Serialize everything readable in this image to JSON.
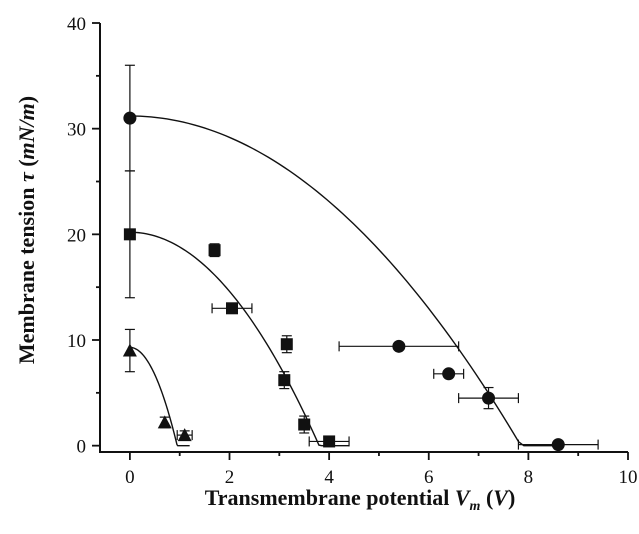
{
  "chart_data": {
    "type": "scatter",
    "title": "",
    "xlabel": "Transmembrane potential V_m (V)",
    "ylabel": "Membrane tension τ (mN/m)",
    "xlim": [
      -0.6,
      10
    ],
    "ylim": [
      -0.6,
      40
    ],
    "xticks": [
      "0",
      "2",
      "4",
      "6",
      "8",
      "10"
    ],
    "yticks": [
      "0",
      "10",
      "20",
      "30",
      "40"
    ],
    "grid": false,
    "legend": "none",
    "series": [
      {
        "marker": "triangle",
        "points": [
          {
            "x": 0.0,
            "y": 9.0,
            "yerr": 2.0
          },
          {
            "x": 0.7,
            "y": 2.2,
            "yerr": 0.5
          },
          {
            "x": 1.1,
            "y": 1.0,
            "yerr": 0.4,
            "xerr": 0.15
          }
        ],
        "fit": {
          "tau0": 9.3,
          "vc": 0.95,
          "x_end": 1.2
        }
      },
      {
        "marker": "square",
        "points": [
          {
            "x": 0.0,
            "y": 20.0,
            "yerr": 6.0
          },
          {
            "x": 1.7,
            "y": 18.5,
            "yerr": 0.6
          },
          {
            "x": 2.05,
            "y": 13.0,
            "xerr": 0.4
          },
          {
            "x": 3.1,
            "y": 6.2,
            "yerr": 0.8
          },
          {
            "x": 3.15,
            "y": 9.6,
            "yerr": 0.8
          },
          {
            "x": 3.5,
            "y": 2.0,
            "yerr": 0.8
          },
          {
            "x": 4.0,
            "y": 0.4,
            "xerr": 0.4
          }
        ],
        "fit": {
          "tau0": 20.2,
          "vc": 3.8,
          "x_end": 4.4
        }
      },
      {
        "marker": "circle",
        "points": [
          {
            "x": 0.0,
            "y": 31.0,
            "yerr": 5.0
          },
          {
            "x": 5.4,
            "y": 9.4,
            "xerr": 1.2
          },
          {
            "x": 6.4,
            "y": 6.8,
            "xerr": 0.3
          },
          {
            "x": 7.2,
            "y": 4.5,
            "xerr": 0.6,
            "yerr": 1.0
          },
          {
            "x": 8.6,
            "y": 0.1,
            "xerr": 0.8
          }
        ],
        "fit": {
          "tau0": 31.2,
          "vc": 7.85,
          "x_end": 8.55
        }
      }
    ]
  }
}
